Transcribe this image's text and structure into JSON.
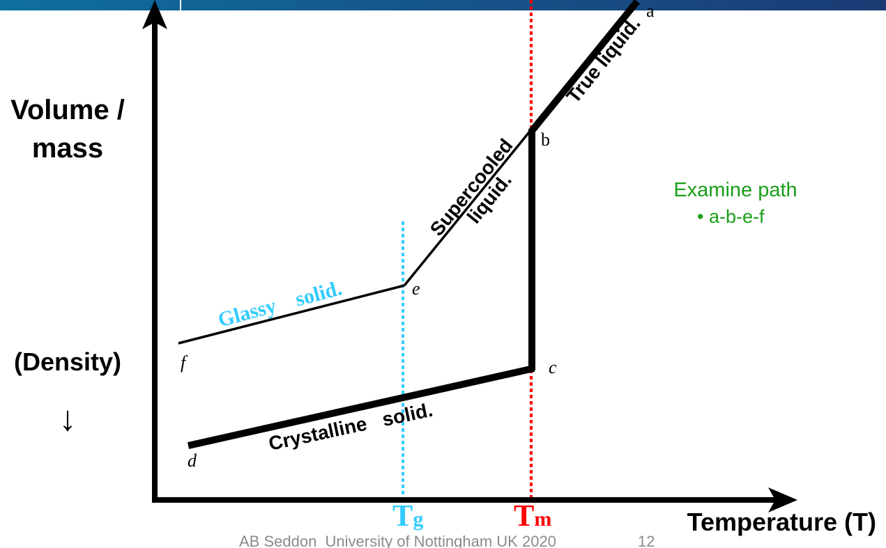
{
  "axes": {
    "y_label_line1": "Volume /",
    "y_label_line2": "mass",
    "y_sub_label": "(Density)",
    "y_sub_arrow": "↓",
    "x_label": "Temperature (T)"
  },
  "markers": {
    "tg": {
      "main": "T",
      "sub": "g",
      "color": "#33ccff"
    },
    "tm": {
      "main": "T",
      "sub": "m",
      "color": "#ff0000"
    }
  },
  "points": {
    "a": "a",
    "b": "b",
    "c": "c",
    "d": "d",
    "e": "e",
    "f": "f"
  },
  "segment_labels": {
    "true_liquid": "True liquid.",
    "supercooled_1": "Supercooled",
    "supercooled_2": "liquid.",
    "glassy": "Glassy    solid.",
    "crystalline": "Crystalline   solid."
  },
  "note": {
    "title": "Examine path",
    "bullet": "• a-b-e-f",
    "color": "#1a9e1a"
  },
  "footer": {
    "credit": "AB Seddon  University of Nottingham UK 2020",
    "page": "12"
  },
  "colors": {
    "header_start": "#0f6fa0",
    "header_end": "#1b3a74",
    "glassy": "#33ccff"
  }
}
